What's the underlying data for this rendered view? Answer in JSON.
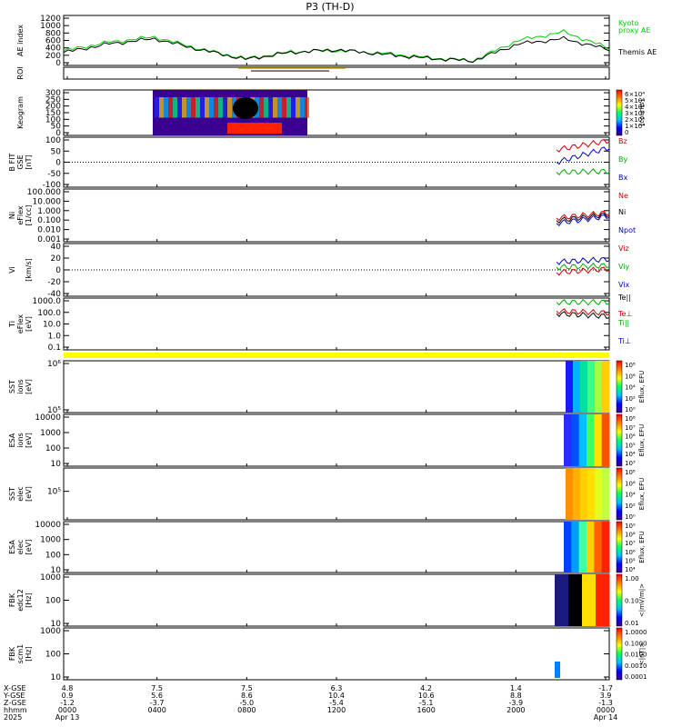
{
  "title": "P3 (TH-D)",
  "colors": {
    "kyoto": "#00cc00",
    "themis": "#000000",
    "bz": "#cc0000",
    "by": "#00aa00",
    "bx": "#0000cc",
    "highlight": "#ffff00"
  },
  "legends": {
    "ae": [
      "Kyoto",
      "proxy AE",
      "Themis AE"
    ],
    "bfield": [
      "Bz",
      "By",
      "Bx"
    ],
    "density": [
      "Ne",
      "Ni",
      "Npot"
    ],
    "velocity": [
      "Viz",
      "Viy",
      "Vix"
    ],
    "temp": [
      "Te||",
      "Te⊥",
      "Ti||",
      "Ti⊥"
    ]
  },
  "panels": [
    {
      "key": "ae",
      "ylabel": [
        "AE index"
      ],
      "ticks": [
        "1200",
        "1000",
        "800",
        "600",
        "400",
        "200",
        "0"
      ]
    },
    {
      "key": "roi",
      "ylabel": [
        "ROI"
      ],
      "ticks": []
    },
    {
      "key": "keo",
      "ylabel": [
        "Keogram"
      ],
      "ticks": [
        "300",
        "250",
        "200",
        "150",
        "100",
        "50",
        "0"
      ]
    },
    {
      "key": "bfield",
      "ylabel": [
        "B FIT",
        "GSE",
        "[nT]"
      ],
      "ticks": [
        "100",
        "50",
        "0",
        "-50",
        "-100"
      ]
    },
    {
      "key": "dens",
      "ylabel": [
        "Ni",
        "eFlex",
        "[1/cc]"
      ],
      "ticks": [
        "100.000",
        "10.000",
        "1.000",
        "0.100",
        "0.010",
        "0.001"
      ]
    },
    {
      "key": "vel",
      "ylabel": [
        "Vi",
        "",
        "[km/s]"
      ],
      "ticks": [
        "40",
        "20",
        "0",
        "-20",
        "-40"
      ]
    },
    {
      "key": "temp",
      "ylabel": [
        "Ti",
        "eFlex",
        "[eV]"
      ],
      "ticks": [
        "1000.0",
        "100.0",
        "10.0",
        "1.0",
        "0.1"
      ]
    },
    {
      "key": "sst_i",
      "ylabel": [
        "SST",
        "ions",
        "[eV]"
      ],
      "ticks": [
        "10⁶",
        "10⁵"
      ]
    },
    {
      "key": "esa_i",
      "ylabel": [
        "ESA",
        "ions",
        "[eV]"
      ],
      "ticks": [
        "10000",
        "1000",
        "100",
        "10"
      ]
    },
    {
      "key": "sst_e",
      "ylabel": [
        "SST",
        "elec",
        "[eV]"
      ],
      "ticks": [
        "10⁵"
      ]
    },
    {
      "key": "esa_e",
      "ylabel": [
        "ESA",
        "elec",
        "[eV]"
      ],
      "ticks": [
        "10000",
        "1000",
        "100",
        "10"
      ]
    },
    {
      "key": "fbk_e",
      "ylabel": [
        "FBK",
        "edc12",
        "[Hz]"
      ],
      "ticks": [
        "1000",
        "100",
        "10"
      ]
    },
    {
      "key": "fbk_b",
      "ylabel": [
        "FBK",
        "scm1",
        "[Hz]"
      ],
      "ticks": [
        "1000",
        "100",
        "10"
      ]
    }
  ],
  "colorbars": {
    "keogram": {
      "ticks": [
        "6×10⁴",
        "5×10⁴",
        "4×10⁴",
        "3×10⁴",
        "2×10⁴",
        "1×10⁴",
        "0"
      ],
      "unit": "[counts]"
    },
    "sst_i": {
      "ticks": [
        "10⁸",
        "10⁶",
        "10⁴",
        "10²",
        "10⁰"
      ],
      "unit": "Eflux, EFU"
    },
    "esa_i": {
      "ticks": [
        "10⁸",
        "10⁷",
        "10⁶",
        "10⁵",
        "10⁴",
        "10³"
      ],
      "unit": "Eflux, EFU"
    },
    "sst_e": {
      "ticks": [
        "10⁸",
        "10⁶",
        "10⁴",
        "10²",
        "10⁰"
      ],
      "unit": "Eflux, EFU"
    },
    "esa_e": {
      "ticks": [
        "10⁹",
        "10⁸",
        "10⁷",
        "10⁶",
        "10⁵",
        "10⁴"
      ],
      "unit": "Eflux, EFU"
    },
    "fbk_e": {
      "ticks": [
        "1.00",
        "0.10",
        "0.01"
      ],
      "unit": "<|mV/m|>"
    },
    "fbk_b": {
      "ticks": [
        "1.0000",
        "0.1000",
        "0.0100",
        "0.0010",
        "0.0001"
      ],
      "unit": "<|nT|>"
    }
  },
  "axis": {
    "row_labels": [
      "X-GSE",
      "Y-GSE",
      "Z-GSE",
      "hhmm",
      "2025"
    ],
    "ticks": [
      {
        "x": "4.8",
        "y": "0.9",
        "z": "-1.2",
        "hhmm": "0000",
        "date": "Apr 13"
      },
      {
        "x": "7.5",
        "y": "5.6",
        "z": "-3.7",
        "hhmm": "0400",
        "date": ""
      },
      {
        "x": "7.5",
        "y": "8.6",
        "z": "-5.0",
        "hhmm": "0800",
        "date": ""
      },
      {
        "x": "6.3",
        "y": "10.4",
        "z": "-5.4",
        "hhmm": "1200",
        "date": ""
      },
      {
        "x": "4.2",
        "y": "10.6",
        "z": "-5.1",
        "hhmm": "1600",
        "date": ""
      },
      {
        "x": "1.4",
        "y": "8.8",
        "z": "-3.9",
        "hhmm": "2000",
        "date": ""
      },
      {
        "x": "-1.7",
        "y": "3.9",
        "z": "-1.3",
        "hhmm": "0000",
        "date": "Apr 14"
      }
    ]
  },
  "chart_data": {
    "type": "line",
    "title": "P3 (TH-D)",
    "xlabel": "hhmm",
    "ylabel": "AE index",
    "x": [
      "0000",
      "0200",
      "0400",
      "0600",
      "0800",
      "1000",
      "1200",
      "1400",
      "1600",
      "1800",
      "2000",
      "2200",
      "0000"
    ],
    "series": [
      {
        "name": "Kyoto proxy AE",
        "values": [
          350,
          600,
          750,
          400,
          120,
          320,
          350,
          280,
          150,
          60,
          650,
          900,
          420
        ]
      },
      {
        "name": "Themis AE",
        "values": [
          300,
          550,
          700,
          380,
          100,
          300,
          380,
          250,
          130,
          50,
          550,
          700,
          380
        ]
      }
    ],
    "ylim": [
      0,
      1300
    ]
  }
}
